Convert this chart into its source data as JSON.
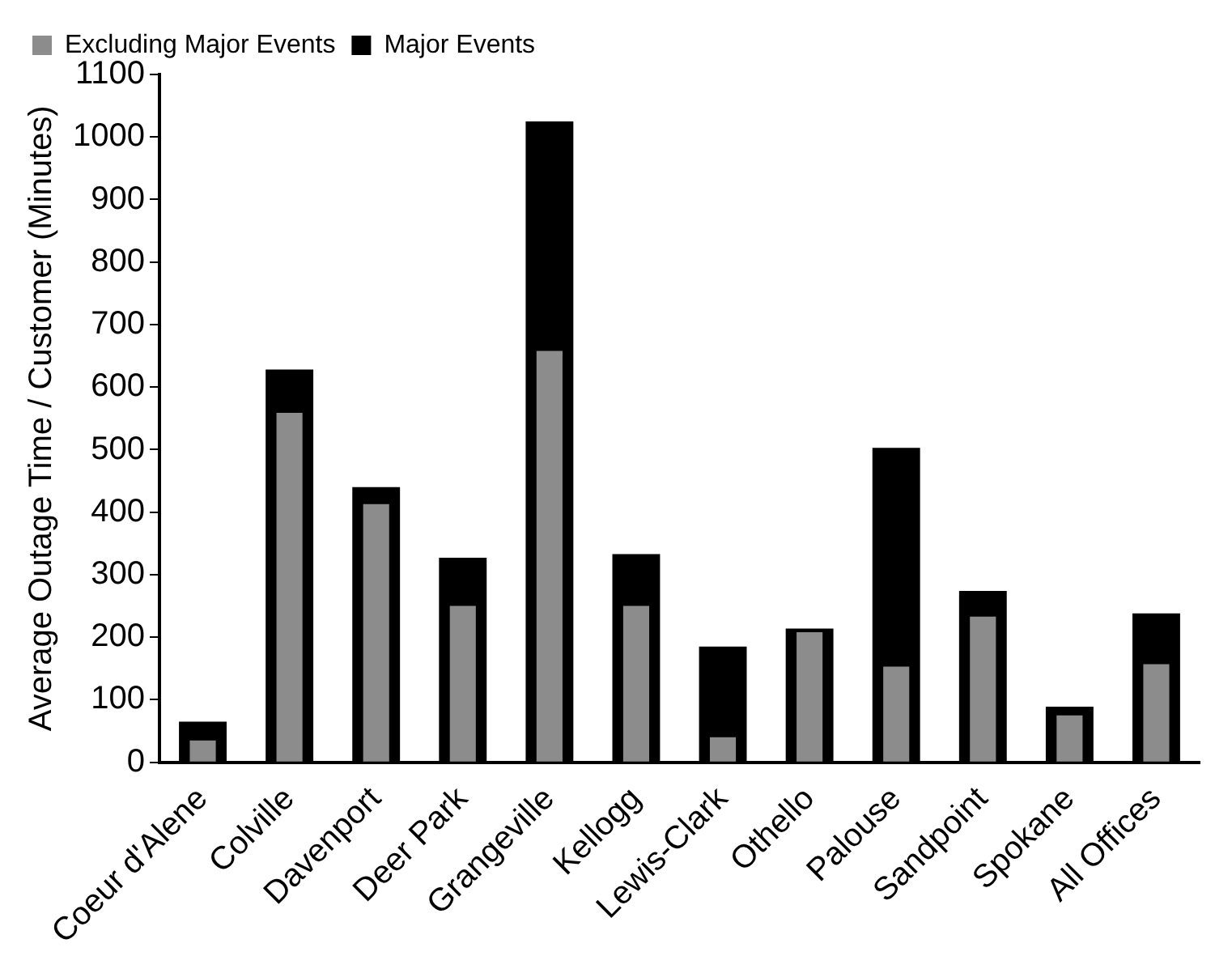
{
  "chart_data": {
    "type": "bar",
    "ylabel": "Average Outage Time / Customer (Minutes)",
    "categories": [
      "Coeur d'Alene",
      "Colville",
      "Davenport",
      "Deer Park",
      "Grangeville",
      "Kellogg",
      "Lewis-Clark",
      "Othello",
      "Palouse",
      "Sandpoint",
      "Spokane",
      "All Offices"
    ],
    "series": [
      {
        "name": "Major Events",
        "color": "#000000",
        "values": [
          65,
          628,
          440,
          327,
          1025,
          333,
          185,
          214,
          503,
          274,
          89,
          238
        ]
      },
      {
        "name": "Excluding Major Events",
        "color": "#8c8c8c",
        "values": [
          35,
          559,
          413,
          250,
          658,
          250,
          40,
          208,
          153,
          233,
          75,
          157
        ]
      }
    ],
    "ylim": [
      0,
      1100
    ],
    "yticks": [
      0,
      100,
      200,
      300,
      400,
      500,
      600,
      700,
      800,
      900,
      1000,
      1100
    ],
    "grid": false,
    "legend": "top"
  }
}
